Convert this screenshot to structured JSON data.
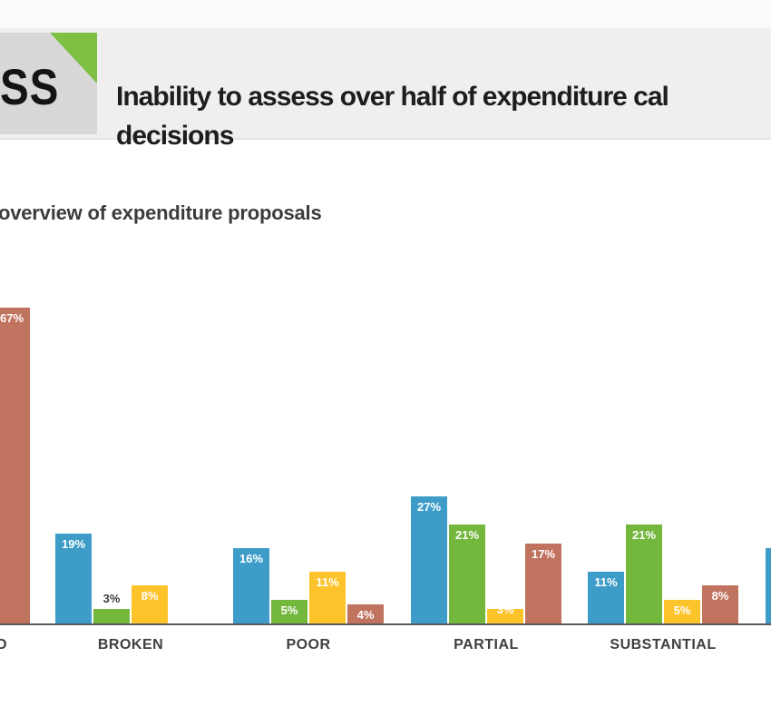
{
  "header": {
    "logo_text": "SS",
    "title_line1": "Inability to assess over half of expenditure cal",
    "title_line2": "decisions"
  },
  "subtitle": "overview of expenditure proposals",
  "colors": {
    "series_blue": "#3E9DC8",
    "series_green": "#73B73D",
    "series_yellow": "#FDC32B",
    "series_red": "#C0735F",
    "top_strip": "#FBFBFB",
    "header_band": "#F0EFEF",
    "logo_box": "#D8D8D8",
    "logo_triangle": "#7DC044",
    "axis_line": "#59595B",
    "title_text": "#1D1D1B",
    "subtitle_text": "#3C3C3B",
    "value_label_white": "#FFFFFF",
    "value_label_black": "#3E3E3E"
  },
  "chart_data": {
    "type": "bar",
    "title": "Inability to assess over half of expenditure cal decisions",
    "subtitle": "overview of expenditure proposals",
    "unit": "%",
    "categories": [
      "D",
      "BROKEN",
      "POOR",
      "PARTIAL",
      "SUBSTANTIAL",
      ""
    ],
    "series": [
      {
        "name": "blue",
        "color": "#3E9DC8",
        "values": [
          null,
          19,
          16,
          27,
          11,
          16
        ]
      },
      {
        "name": "green",
        "color": "#73B73D",
        "values": [
          null,
          3,
          5,
          21,
          21,
          null
        ]
      },
      {
        "name": "yellow",
        "color": "#FDC32B",
        "values": [
          null,
          8,
          11,
          3,
          5,
          null
        ]
      },
      {
        "name": "red",
        "color": "#C0735F",
        "values": [
          67,
          null,
          4,
          17,
          8,
          null
        ]
      }
    ],
    "value_labels": {
      "format": "{v}%",
      "hidden": [
        [
          5,
          0
        ]
      ],
      "above_bar_black": [
        [
          1,
          1
        ]
      ],
      "straddle_top": [
        [
          3,
          2
        ]
      ]
    },
    "ylim": [
      0,
      70
    ],
    "grid": false,
    "legend": false
  }
}
